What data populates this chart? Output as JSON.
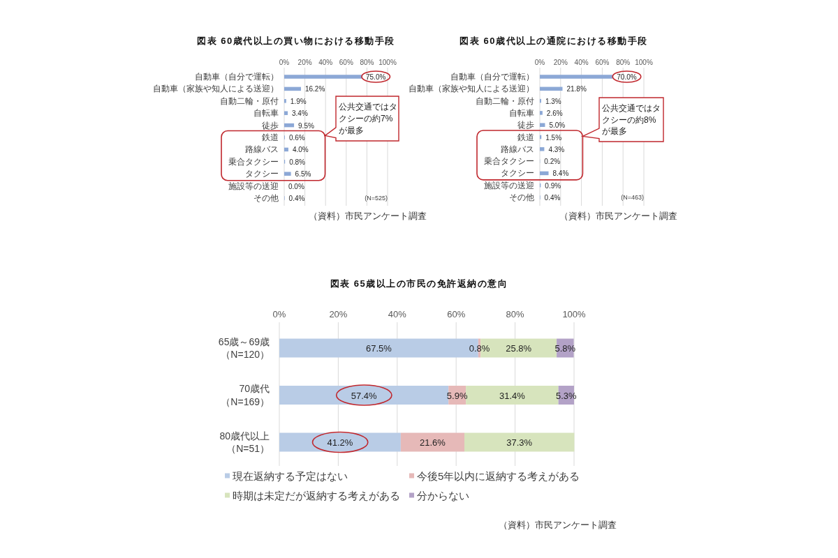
{
  "chart_data": [
    {
      "type": "bar",
      "orientation": "horizontal",
      "title": "図表 60歳代以上の買い物における移動手段",
      "categories": [
        "自動車（自分で運転）",
        "自動車（家族や知人による送迎）",
        "自動二輪・原付",
        "自転車",
        "徒歩",
        "鉄道",
        "路線バス",
        "乗合タクシー",
        "タクシー",
        "施設等の送迎",
        "その他"
      ],
      "values": [
        75.0,
        16.2,
        1.9,
        3.4,
        9.5,
        0.6,
        4.0,
        0.8,
        6.5,
        0.0,
        0.4
      ],
      "value_labels": [
        "75.0%",
        "16.2%",
        "1.9%",
        "3.4%",
        "9.5%",
        "0.6%",
        "4.0%",
        "0.8%",
        "6.5%",
        "0.0%",
        "0.4%"
      ],
      "color": "#8ca8d6",
      "xlim": [
        0,
        100
      ],
      "xticks": [
        {
          "value": 0,
          "label": "0%"
        },
        {
          "value": 20,
          "label": "20%"
        },
        {
          "value": 40,
          "label": "40%"
        },
        {
          "value": 60,
          "label": "60%"
        },
        {
          "value": 80,
          "label": "80%"
        },
        {
          "value": 100,
          "label": "100%"
        }
      ],
      "grid": "x",
      "annotations": [
        "公共交通ではタクシーの約7%が最多",
        "(N=525)",
        "（資料）市民アンケート調査"
      ]
    },
    {
      "type": "bar",
      "orientation": "horizontal",
      "title": "図表 60歳代以上の通院における移動手段",
      "categories": [
        "自動車（自分で運転）",
        "自動車（家族や知人による送迎）",
        "自動二輪・原付",
        "自転車",
        "徒歩",
        "鉄道",
        "路線バス",
        "乗合タクシー",
        "タクシー",
        "施設等の送迎",
        "その他"
      ],
      "values": [
        70.0,
        21.8,
        1.3,
        2.6,
        5.0,
        1.5,
        4.3,
        0.2,
        8.4,
        0.9,
        0.4
      ],
      "value_labels": [
        "70.0%",
        "21.8%",
        "1.3%",
        "2.6%",
        "5.0%",
        "1.5%",
        "4.3%",
        "0.2%",
        "8.4%",
        "0.9%",
        "0.4%"
      ],
      "color": "#8ca8d6",
      "xlim": [
        0,
        100
      ],
      "xticks": [
        {
          "value": 0,
          "label": "0%"
        },
        {
          "value": 20,
          "label": "20%"
        },
        {
          "value": 40,
          "label": "40%"
        },
        {
          "value": 60,
          "label": "60%"
        },
        {
          "value": 80,
          "label": "80%"
        },
        {
          "value": 100,
          "label": "100%"
        }
      ],
      "grid": "x",
      "annotations": [
        "公共交通ではタクシーの約8%が最多",
        "(N=463)",
        "（資料）市民アンケート調査"
      ]
    },
    {
      "type": "bar",
      "orientation": "horizontal",
      "stacked": true,
      "title": "図表 65歳以上の市民の免許返納の意向",
      "categories": [
        "65歳～69歳（N=120）",
        "70歳代（N=169）",
        "80歳代以上（N=51）"
      ],
      "series": [
        {
          "name": "現在返納する予定はない",
          "color": "#b9cce6",
          "values": [
            67.5,
            57.4,
            41.2
          ],
          "value_labels": [
            "67.5%",
            "57.4%",
            "41.2%"
          ]
        },
        {
          "name": "今後5年以内に返納する考えがある",
          "color": "#e6b9b8",
          "values": [
            0.8,
            5.9,
            21.6
          ],
          "value_labels": [
            "0.8%",
            "5.9%",
            "21.6%"
          ]
        },
        {
          "name": "時期は未定だが返納する考えがある",
          "color": "#d7e4bd",
          "values": [
            25.8,
            31.4,
            37.3
          ],
          "value_labels": [
            "25.8%",
            "31.4%",
            "37.3%"
          ]
        },
        {
          "name": "分からない",
          "color": "#b3a2c7",
          "values": [
            5.8,
            5.3,
            null
          ],
          "value_labels": [
            "5.8%",
            "5.3%",
            null
          ]
        }
      ],
      "xlim": [
        0,
        100
      ],
      "xticks": [
        {
          "value": 0,
          "label": "0%"
        },
        {
          "value": 20,
          "label": "20%"
        },
        {
          "value": 40,
          "label": "40%"
        },
        {
          "value": 60,
          "label": "60%"
        },
        {
          "value": 80,
          "label": "80%"
        },
        {
          "value": 100,
          "label": "100%"
        }
      ],
      "grid": "x",
      "legend": "bottom",
      "annotations": [
        "（資料）市民アンケート調査"
      ]
    }
  ]
}
